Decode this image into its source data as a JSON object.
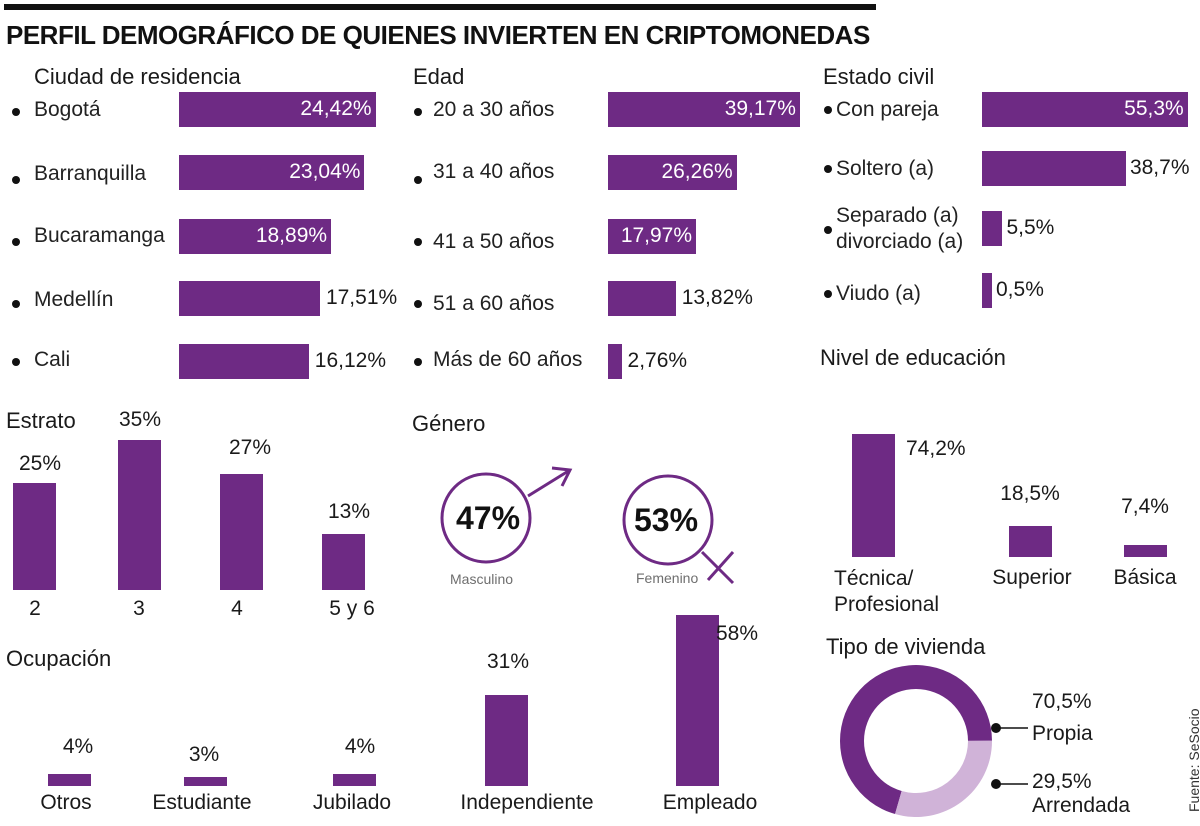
{
  "title": "PERFIL DEMOGRÁFICO DE QUIENES INVIERTEN EN CRIPTOMONEDAS",
  "source": "Fuente: SeSocio",
  "colors": {
    "bar": "#6e2a84",
    "light": "#d0b3d8",
    "text": "#1a1a1a",
    "muted": "#6e6e6e"
  },
  "chart_data": [
    {
      "id": "ciudad",
      "type": "bar",
      "orientation": "horizontal",
      "title": "Ciudad de residencia",
      "categories": [
        "Bogotá",
        "Barranquilla",
        "Bucaramanga",
        "Medellín",
        "Cali"
      ],
      "values": [
        24.42,
        23.04,
        18.89,
        17.51,
        16.12
      ],
      "labels": [
        "24,42%",
        "23,04%",
        "18,89%",
        "17,51%",
        "16,12%"
      ],
      "label_inside": [
        true,
        true,
        true,
        false,
        false
      ]
    },
    {
      "id": "edad",
      "type": "bar",
      "orientation": "horizontal",
      "title": "Edad",
      "categories": [
        "20 a 30 años",
        "31 a 40 años",
        "41 a 50 años",
        "51 a 60 años",
        "Más de 60 años"
      ],
      "values": [
        39.17,
        26.26,
        17.97,
        13.82,
        2.76
      ],
      "labels": [
        "39,17%",
        "26,26%",
        "17,97%",
        "13,82%",
        "2,76%"
      ],
      "label_inside": [
        true,
        true,
        true,
        false,
        false
      ]
    },
    {
      "id": "civil",
      "type": "bar",
      "orientation": "horizontal",
      "title": "Estado civil",
      "categories": [
        "Con pareja",
        "Soltero (a)",
        "Separado (a)\ndivorciado (a)",
        "Viudo (a)"
      ],
      "values": [
        55.3,
        38.7,
        5.5,
        0.5
      ],
      "labels": [
        "55,3%",
        "38,7%",
        "5,5%",
        "0,5%"
      ],
      "label_inside": [
        true,
        false,
        false,
        false
      ]
    },
    {
      "id": "estrato",
      "type": "bar",
      "orientation": "vertical",
      "title": "Estrato",
      "categories": [
        "2",
        "3",
        "4",
        "5 y 6"
      ],
      "values": [
        25,
        35,
        27,
        13
      ],
      "labels": [
        "25%",
        "35%",
        "27%",
        "13%"
      ]
    },
    {
      "id": "genero",
      "type": "pie",
      "title": "Género",
      "categories": [
        "Masculino",
        "Femenino"
      ],
      "values": [
        47,
        53
      ],
      "labels": [
        "47%",
        "53%"
      ]
    },
    {
      "id": "educacion",
      "type": "bar",
      "orientation": "vertical",
      "title": "Nivel de educación",
      "categories": [
        "Técnica/\nProfesional",
        "Superior",
        "Básica"
      ],
      "values": [
        74.2,
        18.5,
        7.4
      ],
      "labels": [
        "74,2%",
        "18,5%",
        "7,4%"
      ]
    },
    {
      "id": "ocupacion",
      "type": "bar",
      "orientation": "vertical",
      "title": "Ocupación",
      "categories": [
        "Otros",
        "Estudiante",
        "Jubilado",
        "Independiente",
        "Empleado"
      ],
      "values": [
        4,
        3,
        4,
        31,
        58
      ],
      "labels": [
        "4%",
        "3%",
        "4%",
        "31%",
        "58%"
      ]
    },
    {
      "id": "vivienda",
      "type": "pie",
      "donut": true,
      "title": "Tipo de vivienda",
      "categories": [
        "Propia",
        "Arrendada"
      ],
      "values": [
        70.5,
        29.5
      ],
      "labels": [
        "70,5%",
        "29,5%"
      ]
    }
  ]
}
